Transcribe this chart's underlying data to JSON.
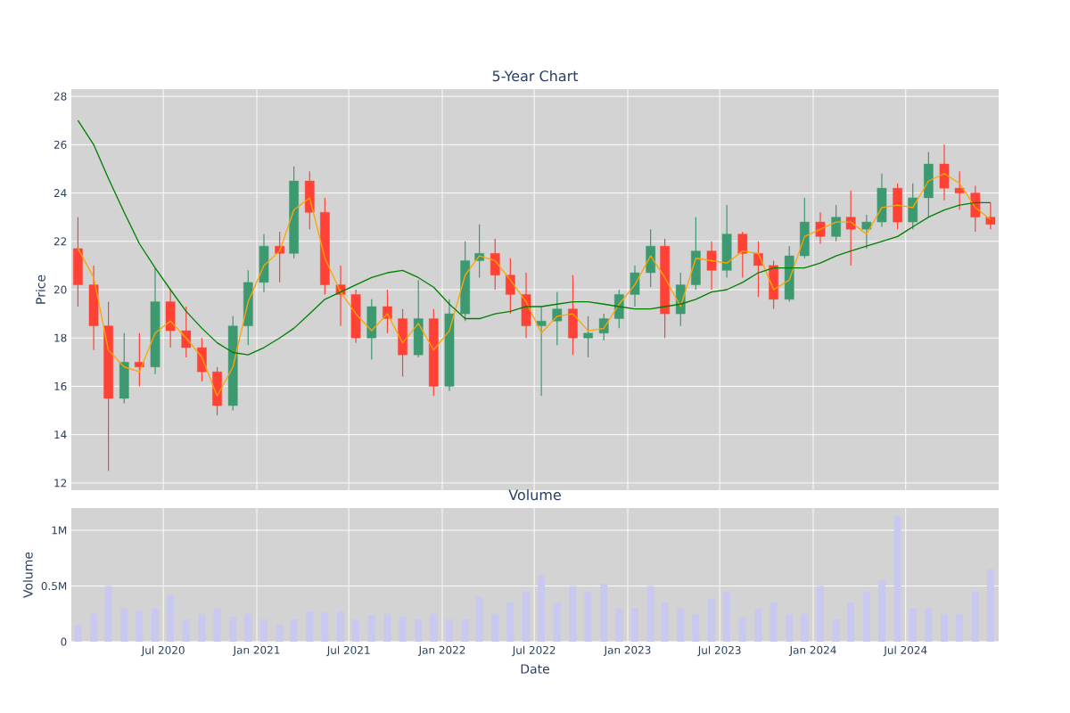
{
  "chart_data": [
    {
      "type": "candlestick",
      "title": "5-Year Chart",
      "ylabel": "Price",
      "x": [
        "2020-01-15",
        "2020-02-15",
        "2020-03-15",
        "2020-04-15",
        "2020-05-15",
        "2020-06-15",
        "2020-07-15",
        "2020-08-15",
        "2020-09-15",
        "2020-10-15",
        "2020-11-15",
        "2020-12-15",
        "2021-01-15",
        "2021-02-15",
        "2021-03-15",
        "2021-04-15",
        "2021-05-15",
        "2021-06-15",
        "2021-07-15",
        "2021-08-15",
        "2021-09-15",
        "2021-10-15",
        "2021-11-15",
        "2021-12-15",
        "2022-01-15",
        "2022-02-15",
        "2022-03-15",
        "2022-04-15",
        "2022-05-15",
        "2022-06-15",
        "2022-07-15",
        "2022-08-15",
        "2022-09-15",
        "2022-10-15",
        "2022-11-15",
        "2022-12-15",
        "2023-01-15",
        "2023-02-15",
        "2023-03-15",
        "2023-04-15",
        "2023-05-15",
        "2023-06-15",
        "2023-07-15",
        "2023-08-15",
        "2023-09-15",
        "2023-10-15",
        "2023-11-15",
        "2023-12-15",
        "2024-01-15",
        "2024-02-15",
        "2024-03-15",
        "2024-04-15",
        "2024-05-15",
        "2024-06-15",
        "2024-07-15",
        "2024-08-15",
        "2024-09-15",
        "2024-10-15",
        "2024-11-15",
        "2024-12-15"
      ],
      "ohlc": [
        [
          21.7,
          23.0,
          19.3,
          20.2
        ],
        [
          20.2,
          21.0,
          17.5,
          18.5
        ],
        [
          18.5,
          19.5,
          12.5,
          15.5
        ],
        [
          15.5,
          18.2,
          15.3,
          17.0
        ],
        [
          17.0,
          18.2,
          16.0,
          16.8
        ],
        [
          16.8,
          20.9,
          16.5,
          19.5
        ],
        [
          19.5,
          20.0,
          17.6,
          18.3
        ],
        [
          18.3,
          19.3,
          17.2,
          17.6
        ],
        [
          17.6,
          18.0,
          16.2,
          16.6
        ],
        [
          16.6,
          16.8,
          14.8,
          15.2
        ],
        [
          15.2,
          18.9,
          15.0,
          18.5
        ],
        [
          18.5,
          20.8,
          17.7,
          20.3
        ],
        [
          20.3,
          22.3,
          19.9,
          21.8
        ],
        [
          21.8,
          22.4,
          20.3,
          21.5
        ],
        [
          21.5,
          25.1,
          21.3,
          24.5
        ],
        [
          24.5,
          24.9,
          22.5,
          23.2
        ],
        [
          23.2,
          23.8,
          19.8,
          20.2
        ],
        [
          20.2,
          21.0,
          18.5,
          19.8
        ],
        [
          19.8,
          20.0,
          17.8,
          18.0
        ],
        [
          18.0,
          19.6,
          17.1,
          19.3
        ],
        [
          19.3,
          20.0,
          18.2,
          18.8
        ],
        [
          18.8,
          19.2,
          16.4,
          17.3
        ],
        [
          17.3,
          20.4,
          17.2,
          18.8
        ],
        [
          18.8,
          19.2,
          15.6,
          16.0
        ],
        [
          16.0,
          19.6,
          15.8,
          19.0
        ],
        [
          19.0,
          22.0,
          18.7,
          21.2
        ],
        [
          21.2,
          22.7,
          20.5,
          21.5
        ],
        [
          21.5,
          22.1,
          20.0,
          20.6
        ],
        [
          20.6,
          21.3,
          19.0,
          19.8
        ],
        [
          19.8,
          20.7,
          18.0,
          18.5
        ],
        [
          18.5,
          19.3,
          15.6,
          18.7
        ],
        [
          18.7,
          19.9,
          17.7,
          19.2
        ],
        [
          19.2,
          20.6,
          17.3,
          18.0
        ],
        [
          18.0,
          18.9,
          17.2,
          18.2
        ],
        [
          18.2,
          19.0,
          17.9,
          18.8
        ],
        [
          18.8,
          20.0,
          18.4,
          19.8
        ],
        [
          19.8,
          21.0,
          19.3,
          20.7
        ],
        [
          20.7,
          22.5,
          20.1,
          21.8
        ],
        [
          21.8,
          22.1,
          18.0,
          19.0
        ],
        [
          19.0,
          20.7,
          18.5,
          20.2
        ],
        [
          20.2,
          23.0,
          20.0,
          21.6
        ],
        [
          21.6,
          22.0,
          20.0,
          20.8
        ],
        [
          20.8,
          23.5,
          20.5,
          22.3
        ],
        [
          22.3,
          22.4,
          20.5,
          21.5
        ],
        [
          21.5,
          22.0,
          19.7,
          21.0
        ],
        [
          21.0,
          21.2,
          19.2,
          19.6
        ],
        [
          19.6,
          21.8,
          19.5,
          21.4
        ],
        [
          21.4,
          23.8,
          21.3,
          22.8
        ],
        [
          22.8,
          23.2,
          21.9,
          22.2
        ],
        [
          22.2,
          23.5,
          22.0,
          23.0
        ],
        [
          23.0,
          24.1,
          21.0,
          22.5
        ],
        [
          22.5,
          23.1,
          21.7,
          22.8
        ],
        [
          22.8,
          24.8,
          22.6,
          24.2
        ],
        [
          24.2,
          24.4,
          22.5,
          22.8
        ],
        [
          22.8,
          24.4,
          22.5,
          23.8
        ],
        [
          23.8,
          25.7,
          23.0,
          25.2
        ],
        [
          25.2,
          26.0,
          23.7,
          24.2
        ],
        [
          24.2,
          24.9,
          23.3,
          24.0
        ],
        [
          24.0,
          24.3,
          22.4,
          23.0
        ],
        [
          23.0,
          23.6,
          22.5,
          22.7
        ]
      ],
      "colors": [
        "#ff4136",
        "#ff4136",
        "#ff4136",
        "#3d9970",
        "#ff4136",
        "#3d9970",
        "#ff4136",
        "#ff4136",
        "#ff4136",
        "#ff4136",
        "#3d9970",
        "#3d9970",
        "#3d9970",
        "#ff4136",
        "#3d9970",
        "#ff4136",
        "#ff4136",
        "#ff4136",
        "#ff4136",
        "#3d9970",
        "#ff4136",
        "#ff4136",
        "#3d9970",
        "#ff4136",
        "#3d9970",
        "#3d9970",
        "#3d9970",
        "#ff4136",
        "#ff4136",
        "#ff4136",
        "#3d9970",
        "#3d9970",
        "#ff4136",
        "#3d9970",
        "#3d9970",
        "#3d9970",
        "#3d9970",
        "#3d9970",
        "#ff4136",
        "#3d9970",
        "#3d9970",
        "#ff4136",
        "#3d9970",
        "#ff4136",
        "#ff4136",
        "#ff4136",
        "#3d9970",
        "#3d9970",
        "#ff4136",
        "#3d9970",
        "#ff4136",
        "#3d9970",
        "#3d9970",
        "#ff4136",
        "#3d9970",
        "#3d9970",
        "#ff4136",
        "#ff4136",
        "#ff4136",
        "#ff4136"
      ],
      "series": [
        {
          "type": "line",
          "color": "#ffa500",
          "values": [
            21.7,
            20.5,
            17.5,
            16.8,
            16.6,
            18.2,
            18.7,
            18.0,
            17.2,
            15.6,
            16.8,
            19.5,
            21.0,
            21.6,
            23.3,
            23.8,
            21.3,
            19.9,
            19.0,
            18.3,
            19.0,
            17.8,
            18.6,
            17.5,
            18.3,
            20.6,
            21.4,
            21.2,
            20.4,
            19.5,
            18.2,
            18.9,
            19.0,
            18.3,
            18.4,
            19.4,
            20.2,
            21.4,
            20.5,
            19.3,
            21.3,
            21.2,
            21.1,
            21.6,
            21.5,
            20.0,
            20.4,
            22.2,
            22.5,
            22.8,
            22.8,
            22.3,
            23.4,
            23.5,
            23.4,
            24.5,
            24.8,
            24.4,
            23.4,
            22.9
          ]
        },
        {
          "type": "line",
          "color": "#008000",
          "values": [
            27.0,
            26.0,
            24.6,
            23.2,
            21.9,
            20.9,
            20.0,
            19.1,
            18.4,
            17.8,
            17.4,
            17.3,
            17.6,
            18.0,
            18.4,
            19.0,
            19.6,
            19.9,
            20.2,
            20.5,
            20.7,
            20.8,
            20.5,
            20.1,
            19.4,
            18.8,
            18.8,
            19.0,
            19.1,
            19.3,
            19.3,
            19.4,
            19.5,
            19.5,
            19.4,
            19.3,
            19.2,
            19.2,
            19.3,
            19.4,
            19.6,
            19.9,
            20.0,
            20.3,
            20.7,
            20.9,
            20.9,
            20.9,
            21.1,
            21.4,
            21.6,
            21.8,
            22.0,
            22.2,
            22.6,
            23.0,
            23.3,
            23.5,
            23.6,
            23.6
          ]
        }
      ],
      "xlim": [
        "2020-01-02",
        "2024-12-31"
      ],
      "ylim": [
        11.7,
        28.3
      ],
      "yticks": [
        12,
        14,
        16,
        18,
        20,
        22,
        24,
        26,
        28
      ],
      "xticks": [
        {
          "value": "2020-07-01",
          "label": null
        },
        {
          "value": "2021-01-01",
          "label": null
        },
        {
          "value": "2021-07-01",
          "label": null
        },
        {
          "value": "2022-01-01",
          "label": null
        },
        {
          "value": "2022-07-01",
          "label": null
        },
        {
          "value": "2023-01-01",
          "label": null
        },
        {
          "value": "2023-07-01",
          "label": null
        },
        {
          "value": "2024-01-01",
          "label": null
        },
        {
          "value": "2024-07-01",
          "label": null
        }
      ],
      "grid": true,
      "tick_labels": "y"
    },
    {
      "type": "bar",
      "title": "Volume",
      "xlabel": "Date",
      "ylabel": "Volume",
      "color": "#c8c8f0",
      "x": [
        "2020-01-15",
        "2020-02-15",
        "2020-03-15",
        "2020-04-15",
        "2020-05-15",
        "2020-06-15",
        "2020-07-15",
        "2020-08-15",
        "2020-09-15",
        "2020-10-15",
        "2020-11-15",
        "2020-12-15",
        "2021-01-15",
        "2021-02-15",
        "2021-03-15",
        "2021-04-15",
        "2021-05-15",
        "2021-06-15",
        "2021-07-15",
        "2021-08-15",
        "2021-09-15",
        "2021-10-15",
        "2021-11-15",
        "2021-12-15",
        "2022-01-15",
        "2022-02-15",
        "2022-03-15",
        "2022-04-15",
        "2022-05-15",
        "2022-06-15",
        "2022-07-15",
        "2022-08-15",
        "2022-09-15",
        "2022-10-15",
        "2022-11-15",
        "2022-12-15",
        "2023-01-15",
        "2023-02-15",
        "2023-03-15",
        "2023-04-15",
        "2023-05-15",
        "2023-06-15",
        "2023-07-15",
        "2023-08-15",
        "2023-09-15",
        "2023-10-15",
        "2023-11-15",
        "2023-12-15",
        "2024-01-15",
        "2024-02-15",
        "2024-03-15",
        "2024-04-15",
        "2024-05-15",
        "2024-06-15",
        "2024-07-15",
        "2024-08-15",
        "2024-09-15",
        "2024-10-15",
        "2024-11-15",
        "2024-12-15"
      ],
      "values": [
        0.15,
        0.25,
        0.5,
        0.3,
        0.28,
        0.3,
        0.42,
        0.2,
        0.25,
        0.3,
        0.22,
        0.25,
        0.2,
        0.15,
        0.2,
        0.27,
        0.26,
        0.27,
        0.2,
        0.24,
        0.25,
        0.22,
        0.2,
        0.25,
        0.2,
        0.2,
        0.4,
        0.25,
        0.35,
        0.45,
        0.6,
        0.35,
        0.5,
        0.45,
        0.52,
        0.3,
        0.3,
        0.5,
        0.35,
        0.3,
        0.25,
        0.38,
        0.45,
        0.22,
        0.3,
        0.35,
        0.25,
        0.25,
        0.5,
        0.2,
        0.35,
        0.45,
        0.55,
        1.13,
        0.3,
        0.3,
        0.25,
        0.25,
        0.45,
        0.65
      ],
      "xlim": [
        "2020-01-02",
        "2024-12-31"
      ],
      "ylim": [
        0,
        1.2
      ],
      "yticks": [
        {
          "value": 0,
          "label": "0"
        },
        {
          "value": 0.5,
          "label": "0.5M"
        },
        {
          "value": 1,
          "label": "1M"
        }
      ],
      "xticks": [
        {
          "value": "2020-07-01",
          "label": "Jul 2020"
        },
        {
          "value": "2021-01-01",
          "label": "Jan 2021"
        },
        {
          "value": "2021-07-01",
          "label": "Jul 2021"
        },
        {
          "value": "2022-01-01",
          "label": "Jan 2022"
        },
        {
          "value": "2022-07-01",
          "label": "Jul 2022"
        },
        {
          "value": "2023-01-01",
          "label": "Jan 2023"
        },
        {
          "value": "2023-07-01",
          "label": "Jul 2023"
        },
        {
          "value": "2024-01-01",
          "label": "Jan 2024"
        },
        {
          "value": "2024-07-01",
          "label": "Jul 2024"
        }
      ],
      "grid": true
    }
  ]
}
